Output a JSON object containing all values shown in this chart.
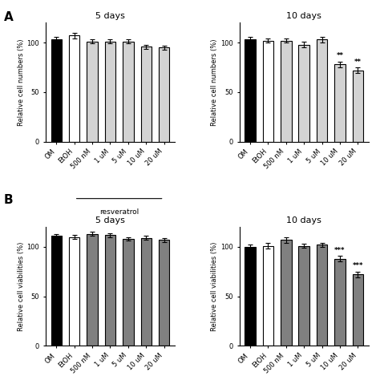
{
  "categories": [
    "OM",
    "EtOH",
    "500 nM",
    "1 uM",
    "5 uM",
    "10 uM",
    "20 uM"
  ],
  "panel_A_5d": {
    "values": [
      103,
      107,
      101,
      101,
      101,
      96,
      95
    ],
    "errors": [
      3,
      3,
      2,
      2,
      2,
      2,
      2
    ],
    "colors": [
      "#000000",
      "#ffffff",
      "#d3d3d3",
      "#d3d3d3",
      "#d3d3d3",
      "#d3d3d3",
      "#d3d3d3"
    ],
    "sig": [
      "",
      "",
      "",
      "",
      "",
      "",
      ""
    ]
  },
  "panel_A_10d": {
    "values": [
      103,
      102,
      102,
      98,
      103,
      78,
      72
    ],
    "errors": [
      3,
      2,
      2,
      3,
      3,
      3,
      3
    ],
    "colors": [
      "#000000",
      "#ffffff",
      "#d3d3d3",
      "#d3d3d3",
      "#d3d3d3",
      "#d3d3d3",
      "#d3d3d3"
    ],
    "sig": [
      "",
      "",
      "",
      "",
      "",
      "**",
      "**"
    ]
  },
  "panel_B_5d": {
    "values": [
      111,
      110,
      113,
      112,
      108,
      109,
      107
    ],
    "errors": [
      2,
      2,
      2,
      2,
      2,
      2,
      2
    ],
    "colors": [
      "#000000",
      "#ffffff",
      "#808080",
      "#808080",
      "#808080",
      "#808080",
      "#808080"
    ],
    "sig": [
      "",
      "",
      "",
      "",
      "",
      "",
      ""
    ]
  },
  "panel_B_10d": {
    "values": [
      100,
      101,
      107,
      101,
      102,
      88,
      72
    ],
    "errors": [
      2,
      3,
      3,
      2,
      2,
      3,
      3
    ],
    "colors": [
      "#000000",
      "#ffffff",
      "#808080",
      "#808080",
      "#808080",
      "#808080",
      "#808080"
    ],
    "sig": [
      "",
      "",
      "",
      "",
      "",
      "***",
      "***"
    ]
  },
  "ylabel_A": "Relative cell numbers (%)",
  "ylabel_B": "Relative cell viabilities (%)",
  "ylim": [
    0,
    120
  ],
  "yticks": [
    0,
    50,
    100
  ],
  "title_5d": "5 days",
  "title_10d": "10 days",
  "label_A": "A",
  "label_B": "B",
  "resveratrol_label": "resveratrol",
  "bar_width": 0.6,
  "edge_color": "#000000"
}
